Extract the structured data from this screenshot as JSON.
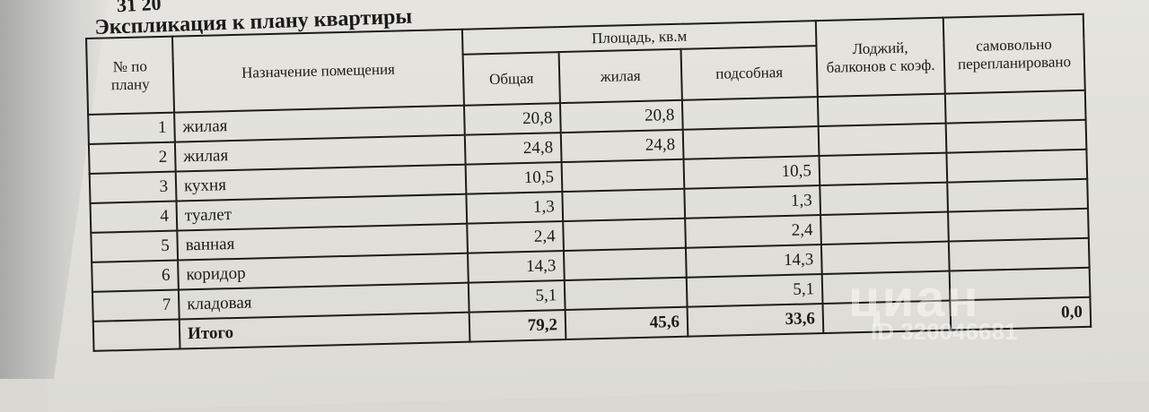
{
  "stamp": "31 20",
  "title": "Экспликация к плану квартиры",
  "headers": {
    "number": "№ по плану",
    "purpose": "Назначение помещения",
    "area_group": "Площадь, кв.м",
    "total": "Общая",
    "living": "жилая",
    "auxiliary": "подсобная",
    "loggias": "Лоджий, балконов с коэф.",
    "unauthorized": "самовольно перепланировано"
  },
  "rows": [
    {
      "n": "1",
      "name": "жилая",
      "total": "20,8",
      "living": "20,8",
      "aux": ""
    },
    {
      "n": "2",
      "name": "жилая",
      "total": "24,8",
      "living": "24,8",
      "aux": ""
    },
    {
      "n": "3",
      "name": "кухня",
      "total": "10,5",
      "living": "",
      "aux": "10,5"
    },
    {
      "n": "4",
      "name": "туалет",
      "total": "1,3",
      "living": "",
      "aux": "1,3"
    },
    {
      "n": "5",
      "name": "ванная",
      "total": "2,4",
      "living": "",
      "aux": "2,4"
    },
    {
      "n": "6",
      "name": "коридор",
      "total": "14,3",
      "living": "",
      "aux": "14,3"
    },
    {
      "n": "7",
      "name": "кладовая",
      "total": "5,1",
      "living": "",
      "aux": "5,1"
    }
  ],
  "totals": {
    "label": "Итого",
    "total": "79,2",
    "living": "45,6",
    "aux": "33,6",
    "unauthorized": "0,0"
  },
  "watermark": {
    "logo": "циан",
    "id": "ID 320046681"
  }
}
